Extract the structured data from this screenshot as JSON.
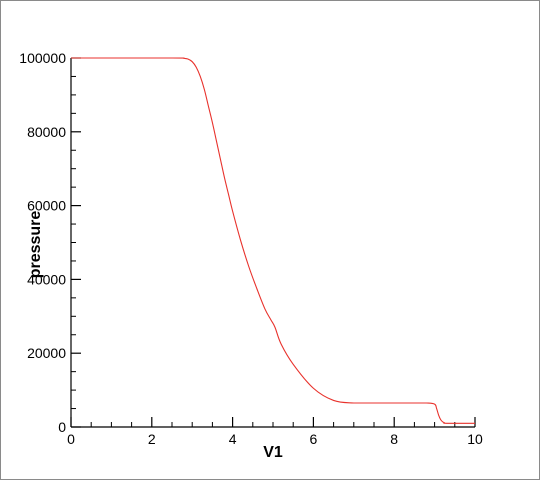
{
  "chart_data": {
    "type": "line",
    "title": "",
    "xlabel": "V1",
    "ylabel": "pressure",
    "xlim": [
      0,
      10
    ],
    "ylim": [
      0,
      100000
    ],
    "x_ticks": [
      0,
      2,
      4,
      6,
      8,
      10
    ],
    "y_ticks": [
      0,
      20000,
      40000,
      60000,
      80000,
      100000
    ],
    "x_minor_step": 0.5,
    "y_minor_step": 5000,
    "grid": false,
    "legend": "none",
    "series": [
      {
        "color": "#e8322c",
        "x": [
          0,
          2.5,
          2.8,
          2.9,
          3.0,
          3.1,
          3.2,
          3.3,
          3.4,
          3.5,
          3.6,
          3.7,
          3.8,
          3.9,
          4.0,
          4.2,
          4.4,
          4.6,
          4.8,
          4.95,
          5.05,
          5.2,
          5.5,
          6.0,
          6.5,
          7.0,
          7.5,
          8.0,
          8.5,
          8.8,
          9.0,
          9.05,
          9.1,
          9.15,
          9.2,
          9.25,
          9.3,
          10.0
        ],
        "y": [
          100000,
          100000,
          99900,
          99700,
          99000,
          97500,
          95000,
          91500,
          87000,
          82500,
          77500,
          72500,
          67500,
          63000,
          58500,
          50500,
          43500,
          37500,
          32000,
          29000,
          27000,
          22500,
          17000,
          10500,
          7200,
          6500,
          6500,
          6500,
          6500,
          6500,
          6200,
          5000,
          3200,
          2000,
          1400,
          1100,
          1000,
          1000
        ]
      }
    ]
  }
}
